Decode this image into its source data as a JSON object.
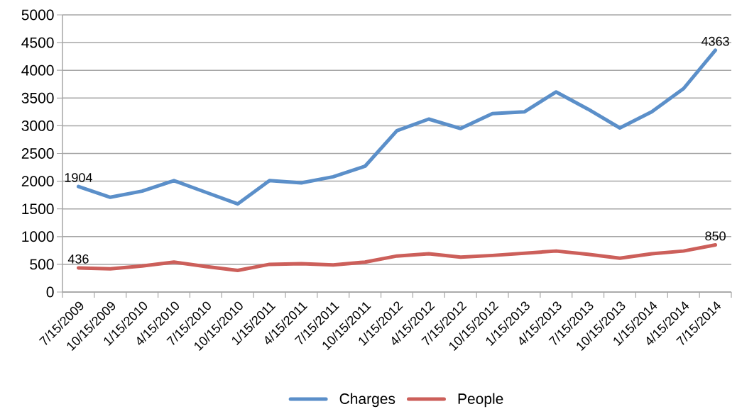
{
  "chart_data": {
    "type": "line",
    "categories": [
      "7/15/2009",
      "10/15/2009",
      "1/15/2010",
      "4/15/2010",
      "7/15/2010",
      "10/15/2010",
      "1/15/2011",
      "4/15/2011",
      "7/15/2011",
      "10/15/2011",
      "1/15/2012",
      "4/15/2012",
      "7/15/2012",
      "10/15/2012",
      "1/15/2013",
      "4/15/2013",
      "7/15/2013",
      "10/15/2013",
      "1/15/2014",
      "4/15/2014",
      "7/15/2014"
    ],
    "series": [
      {
        "name": "Charges",
        "color": "#5b8fc9",
        "values": [
          1904,
          1710,
          1820,
          2010,
          1800,
          1590,
          2010,
          1970,
          2080,
          2270,
          2910,
          3120,
          2950,
          3220,
          3250,
          3610,
          3300,
          2960,
          3250,
          3670,
          4363
        ],
        "value_labels": [
          "1904",
          null,
          null,
          null,
          null,
          null,
          null,
          null,
          null,
          null,
          null,
          null,
          null,
          null,
          null,
          null,
          null,
          null,
          null,
          null,
          "4363"
        ]
      },
      {
        "name": "People",
        "color": "#cc5f5a",
        "values": [
          436,
          420,
          470,
          540,
          460,
          390,
          500,
          510,
          490,
          540,
          650,
          690,
          630,
          660,
          700,
          740,
          680,
          610,
          690,
          740,
          850
        ],
        "value_labels": [
          "436",
          null,
          null,
          null,
          null,
          null,
          null,
          null,
          null,
          null,
          null,
          null,
          null,
          null,
          null,
          null,
          null,
          null,
          null,
          null,
          "850"
        ]
      }
    ],
    "ylim": [
      0,
      5000
    ],
    "yticks": [
      0,
      500,
      1000,
      1500,
      2000,
      2500,
      3000,
      3500,
      4000,
      4500,
      5000
    ],
    "grid": "y",
    "legend": "bottom",
    "marker": "none",
    "line_style": "solid"
  }
}
